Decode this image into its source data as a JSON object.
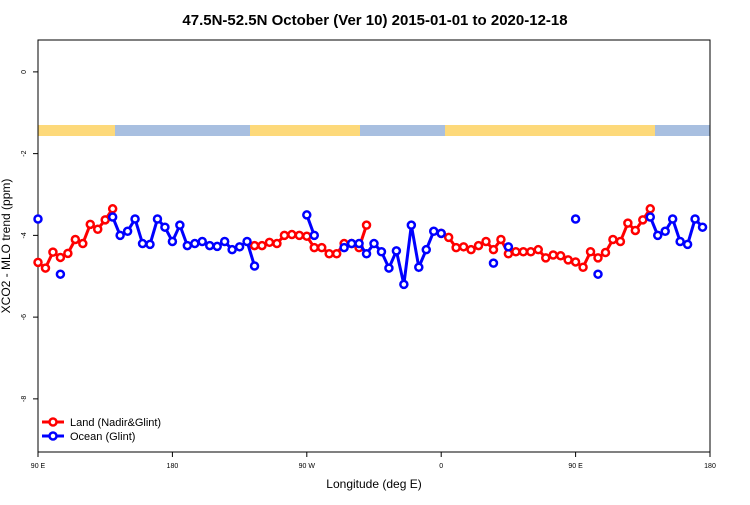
{
  "chart_data": {
    "type": "line",
    "title": "47.5N-52.5N October (Ver 10)   2015-01-01 to 2020-12-18",
    "xlabel": "Longitude (deg E)",
    "ylabel": "XCO2 - MLO trend (ppm)",
    "x": [
      90,
      95,
      100,
      105,
      110,
      115,
      120,
      125,
      130,
      135,
      140,
      145,
      150,
      155,
      160,
      165,
      170,
      175,
      180,
      185,
      190,
      195,
      200,
      205,
      210,
      215,
      220,
      225,
      230,
      235,
      240,
      245,
      250,
      255,
      260,
      265,
      270,
      275,
      280,
      285,
      290,
      295,
      300,
      305,
      310,
      315,
      320,
      325,
      330,
      335,
      340,
      345,
      350,
      355,
      360,
      365,
      370,
      375,
      380,
      385,
      390,
      395,
      400,
      405,
      410,
      415,
      420,
      425,
      430,
      435,
      440,
      445,
      450,
      455,
      460,
      465,
      470,
      475,
      480,
      485,
      490,
      495,
      500,
      505,
      510,
      515,
      520,
      525,
      530,
      535,
      540
    ],
    "xlim": [
      90,
      540
    ],
    "xticks": [
      {
        "value": 90,
        "label": "90 E"
      },
      180,
      {
        "value": 270,
        "label": "90 W"
      },
      {
        "value": 360,
        "label": "0"
      },
      {
        "value": 450,
        "label": "90 E"
      },
      {
        "value": 540,
        "label": "180"
      }
    ],
    "ylim": [
      -9.3,
      0.78
    ],
    "yticks": [
      0,
      -2,
      -4,
      -6,
      -8
    ],
    "legend": "bottom-left",
    "series": [
      {
        "name": "Land (Nadir&Glint)",
        "color": "#ff0000",
        "values": [
          -4.66,
          -4.8,
          -4.41,
          -4.54,
          -4.44,
          -4.1,
          -4.2,
          -3.73,
          -3.85,
          -3.62,
          -3.35,
          null,
          null,
          null,
          null,
          null,
          null,
          null,
          null,
          null,
          null,
          null,
          null,
          null,
          null,
          null,
          null,
          null,
          null,
          -4.25,
          -4.25,
          -4.17,
          -4.2,
          -4.0,
          -3.98,
          -4.0,
          -4.02,
          -4.3,
          -4.3,
          -4.45,
          -4.45,
          -4.2,
          -4.2,
          -4.3,
          -3.75,
          null,
          null,
          null,
          null,
          null,
          null,
          null,
          null,
          null,
          -3.95,
          -4.05,
          -4.3,
          -4.28,
          -4.35,
          -4.25,
          -4.15,
          -4.35,
          -4.1,
          -4.45,
          -4.4,
          -4.4,
          -4.4,
          -4.35,
          -4.55,
          -4.48,
          -4.5,
          -4.6,
          -4.65,
          -4.78,
          -4.4,
          -4.55,
          -4.42,
          -4.1,
          -4.15,
          -3.7,
          -3.88,
          -3.62,
          -3.35,
          null,
          null,
          null,
          null,
          null,
          null,
          null,
          null
        ]
      },
      {
        "name": "Ocean (Glint)",
        "color": "#0000ff",
        "values": [
          -3.6,
          null,
          null,
          -4.95,
          null,
          null,
          null,
          null,
          null,
          null,
          -3.55,
          -4.0,
          -3.9,
          -3.6,
          -4.2,
          -4.22,
          -3.6,
          -3.8,
          -4.15,
          -3.75,
          -4.25,
          -4.2,
          -4.15,
          -4.25,
          -4.27,
          -4.15,
          -4.35,
          -4.28,
          -4.15,
          -4.75,
          null,
          null,
          null,
          null,
          null,
          null,
          -3.5,
          -4.0,
          null,
          null,
          null,
          -4.3,
          -4.2,
          -4.2,
          -4.45,
          -4.2,
          -4.4,
          -4.8,
          -4.38,
          -5.2,
          -3.75,
          -4.78,
          -4.35,
          -3.9,
          -3.95,
          null,
          null,
          null,
          null,
          null,
          null,
          -4.68,
          null,
          -4.28,
          null,
          null,
          null,
          null,
          null,
          null,
          null,
          null,
          -3.6,
          null,
          null,
          -4.95,
          null,
          null,
          null,
          null,
          null,
          null,
          -3.55,
          -4.0,
          -3.9,
          -3.6,
          -4.15,
          -4.22,
          -3.6,
          -3.8,
          null
        ]
      }
    ]
  }
}
